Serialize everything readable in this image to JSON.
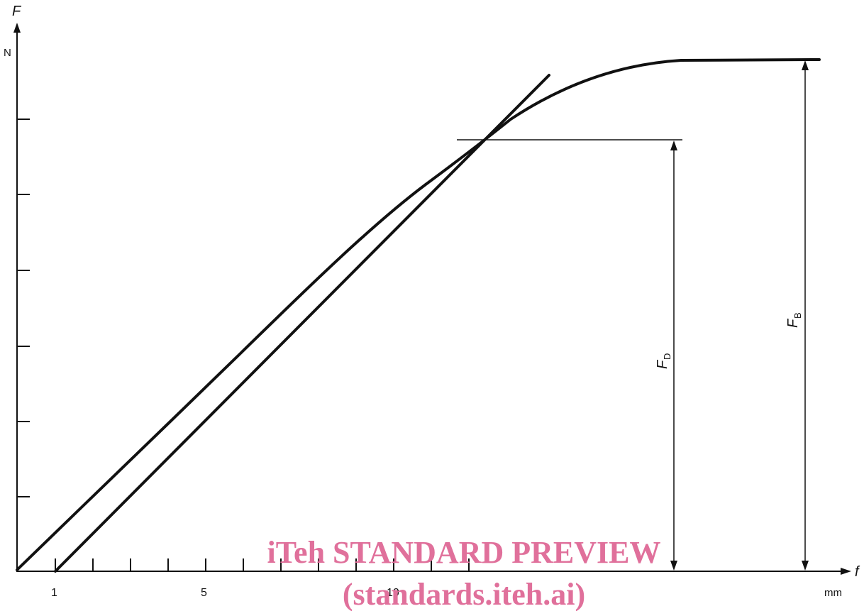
{
  "diagram": {
    "y_axis": {
      "symbol": "F",
      "unit": "N"
    },
    "x_axis": {
      "symbol": "f",
      "unit": "mm",
      "tick_labels": [
        "1",
        "5",
        "10"
      ]
    },
    "dimensions": {
      "fd": {
        "symbol": "F",
        "subscript": "D"
      },
      "fb": {
        "symbol": "F",
        "subscript": "B"
      }
    },
    "curves": [
      "force-deflection-curve",
      "tangent-line",
      "horizontal-reference-at-fd"
    ]
  },
  "watermark": {
    "line1": "iTeh STANDARD PREVIEW",
    "line2": "(standards.iteh.ai)",
    "color": "#e0709b"
  },
  "colors": {
    "ink": "#111111",
    "background": "#ffffff"
  }
}
